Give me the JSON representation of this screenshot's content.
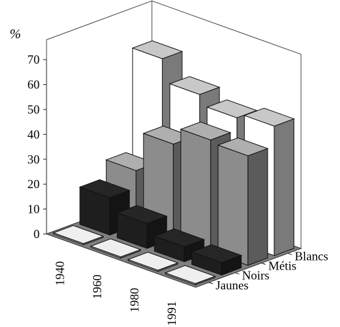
{
  "chart_data": {
    "type": "bar",
    "subtype": "3d-clustered-column",
    "title": "",
    "ylabel": "%",
    "ylim": [
      0,
      70
    ],
    "yticks": [
      0,
      10,
      20,
      30,
      40,
      50,
      60,
      70
    ],
    "categories": [
      "1940",
      "1960",
      "1980",
      "1991"
    ],
    "series": [
      {
        "name": "Jaunes",
        "values": [
          0.5,
          0.5,
          0.5,
          0.5
        ],
        "color": "#bfbfbf"
      },
      {
        "name": "Noirs",
        "values": [
          15,
          10,
          6,
          5
        ],
        "color": "#1e1e1e"
      },
      {
        "name": "Métis",
        "values": [
          22,
          38,
          45,
          44
        ],
        "color": "#8c8c8c"
      },
      {
        "name": "Blancs",
        "values": [
          63,
          54,
          50,
          52
        ],
        "color": "#ffffff"
      }
    ],
    "grid": false,
    "legend": "depth-axis-right"
  }
}
